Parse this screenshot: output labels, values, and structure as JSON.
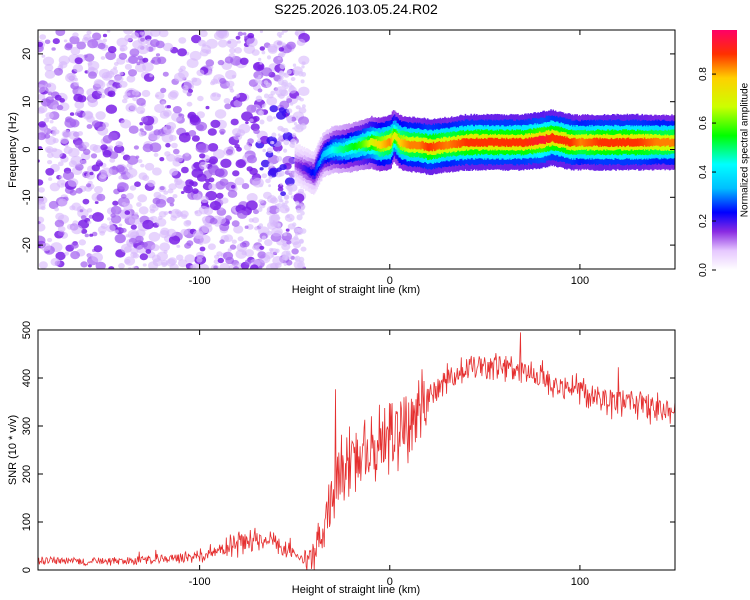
{
  "title": "S225.2026.103.05.24.R02",
  "chart_data": [
    {
      "type": "heatmap",
      "name": "spectrogram",
      "xlabel": "Height of straight line (km)",
      "ylabel": "Frequency (Hz)",
      "xlim": [
        -185,
        150
      ],
      "ylim": [
        -25,
        25
      ],
      "xticks": [
        -100,
        0,
        100
      ],
      "xtick_labels": [
        "-100",
        "0",
        "100"
      ],
      "yticks": [
        -20,
        -10,
        0,
        10,
        20
      ],
      "ytick_labels": [
        "-20",
        "-10",
        "0",
        "10",
        "20"
      ],
      "colorbar": {
        "label": "Normalized spectral amplitude",
        "range": [
          0,
          0.98
        ],
        "ticks": [
          0.0,
          0.2,
          0.4,
          0.6,
          0.8
        ],
        "tick_labels": [
          "0.0",
          "0.2",
          "0.4",
          "0.6",
          "0.8"
        ]
      },
      "noise_region": {
        "x_range": [
          -185,
          -45
        ],
        "freq_range": [
          -25,
          25
        ],
        "amplitude": [
          0.0,
          0.15
        ]
      },
      "signal_ridge": {
        "x": [
          -50,
          -45,
          -40,
          -38,
          -35,
          -30,
          -25,
          -20,
          -15,
          -10,
          -5,
          0,
          2,
          5,
          10,
          15,
          20,
          30,
          40,
          50,
          60,
          70,
          80,
          85,
          90,
          95,
          100,
          110,
          120,
          130,
          140,
          150
        ],
        "freq": [
          -3,
          -4,
          -5,
          -3,
          -1,
          0,
          0,
          0.5,
          1,
          1.5,
          1,
          1.5,
          3,
          1.5,
          1,
          1,
          0.5,
          1,
          1.5,
          1.5,
          1.5,
          1.5,
          2,
          2.5,
          2,
          1.5,
          1.5,
          1.5,
          1.5,
          1.5,
          1.5,
          1.5
        ],
        "amplitude": [
          0.15,
          0.2,
          0.25,
          0.3,
          0.35,
          0.45,
          0.5,
          0.55,
          0.6,
          0.7,
          0.8,
          0.85,
          0.7,
          0.8,
          0.85,
          0.85,
          0.9,
          0.85,
          0.9,
          0.9,
          0.9,
          0.9,
          0.95,
          0.9,
          0.9,
          0.9,
          0.85,
          0.9,
          0.9,
          0.9,
          0.85,
          0.85
        ]
      }
    },
    {
      "type": "line",
      "name": "snr",
      "xlabel": "Height of straight line (km)",
      "ylabel": "SNR (10 * v/v)",
      "xlim": [
        -185,
        150
      ],
      "ylim": [
        0,
        500
      ],
      "xticks": [
        -100,
        0,
        100
      ],
      "xtick_labels": [
        "-100",
        "0",
        "100"
      ],
      "yticks": [
        0,
        100,
        200,
        300,
        400,
        500
      ],
      "ytick_labels": [
        "0",
        "100",
        "200",
        "300",
        "400",
        "500"
      ],
      "color": "#e53030",
      "series": [
        {
          "name": "SNR",
          "x": [
            -185,
            -160,
            -130,
            -110,
            -100,
            -90,
            -80,
            -70,
            -60,
            -50,
            -45,
            -40,
            -35,
            -30,
            -25,
            -20,
            -15,
            -10,
            -5,
            0,
            5,
            10,
            15,
            20,
            25,
            30,
            40,
            50,
            60,
            70,
            80,
            90,
            100,
            110,
            120,
            130,
            140,
            150
          ],
          "y": [
            20,
            18,
            20,
            25,
            30,
            40,
            55,
            60,
            55,
            30,
            22,
            25,
            80,
            170,
            200,
            220,
            240,
            250,
            260,
            280,
            300,
            320,
            340,
            360,
            380,
            400,
            420,
            425,
            420,
            410,
            400,
            385,
            375,
            360,
            350,
            345,
            340,
            335
          ]
        }
      ]
    }
  ],
  "colors": {
    "noise": "#8a2be2",
    "line": "#e53030",
    "axis": "#000000",
    "background": "#ffffff"
  }
}
